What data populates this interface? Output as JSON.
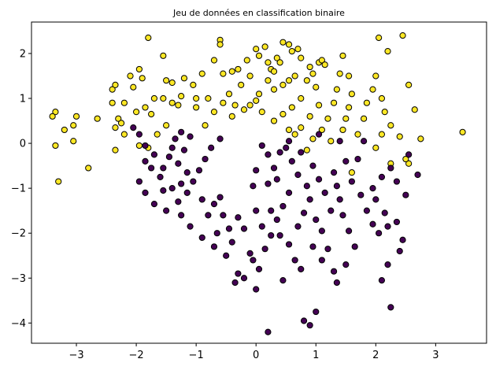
{
  "chart_data": {
    "type": "scatter",
    "title": "Jeu de données en classification binaire",
    "xlabel": "",
    "ylabel": "",
    "xlim": [
      -3.75,
      3.85
    ],
    "ylim": [
      -4.45,
      2.7
    ],
    "x_ticks": [
      -3,
      -2,
      -1,
      0,
      1,
      2,
      3
    ],
    "y_ticks": [
      -4,
      -3,
      -2,
      -1,
      0,
      1,
      2
    ],
    "x_tick_labels": [
      "−3",
      "−2",
      "−1",
      "0",
      "1",
      "2",
      "3"
    ],
    "y_tick_labels": [
      "−4",
      "−3",
      "−2",
      "−1",
      "0",
      "1",
      "2"
    ],
    "grid": false,
    "legend": "none",
    "colors": {
      "class_0": "#440154",
      "class_1": "#fde725",
      "edge": "#000000"
    },
    "series": [
      {
        "class": 1,
        "points": [
          [
            -3.35,
            0.7
          ],
          [
            -3.4,
            0.6
          ],
          [
            -3.2,
            0.3
          ],
          [
            -3.0,
            0.6
          ],
          [
            -3.05,
            0.4
          ],
          [
            -3.05,
            0.05
          ],
          [
            -3.35,
            -0.05
          ],
          [
            -3.3,
            -0.85
          ],
          [
            -2.8,
            -0.55
          ],
          [
            -2.65,
            0.55
          ],
          [
            -2.4,
            1.2
          ],
          [
            -2.35,
            1.3
          ],
          [
            -2.4,
            0.9
          ],
          [
            -2.3,
            0.55
          ],
          [
            -2.25,
            0.45
          ],
          [
            -2.35,
            0.35
          ],
          [
            -2.2,
            0.2
          ],
          [
            -2.35,
            -0.15
          ],
          [
            -2.2,
            0.9
          ],
          [
            -2.1,
            1.5
          ],
          [
            -2.05,
            1.25
          ],
          [
            -1.95,
            1.65
          ],
          [
            -1.9,
            1.45
          ],
          [
            -2.0,
            0.7
          ],
          [
            -1.85,
            0.8
          ],
          [
            -1.7,
            1.0
          ],
          [
            -1.75,
            0.65
          ],
          [
            -1.8,
            2.35
          ],
          [
            -1.55,
            1.95
          ],
          [
            -1.5,
            1.4
          ],
          [
            -1.4,
            1.35
          ],
          [
            -1.55,
            1.0
          ],
          [
            -1.4,
            0.9
          ],
          [
            -1.3,
            0.85
          ],
          [
            -1.25,
            1.05
          ],
          [
            -1.5,
            0.4
          ],
          [
            -1.65,
            0.2
          ],
          [
            -1.95,
            -0.05
          ],
          [
            -1.8,
            -0.1
          ],
          [
            -1.2,
            1.45
          ],
          [
            -1.05,
            1.3
          ],
          [
            -0.9,
            1.55
          ],
          [
            -1.0,
            1.0
          ],
          [
            -0.8,
            1.0
          ],
          [
            -1.0,
            0.8
          ],
          [
            -0.7,
            0.7
          ],
          [
            -0.85,
            0.4
          ],
          [
            -0.7,
            1.85
          ],
          [
            -0.6,
            2.3
          ],
          [
            -0.6,
            2.2
          ],
          [
            -0.55,
            1.55
          ],
          [
            -0.4,
            1.6
          ],
          [
            -0.3,
            1.65
          ],
          [
            -0.15,
            1.85
          ],
          [
            -0.25,
            1.3
          ],
          [
            -0.45,
            1.1
          ],
          [
            -0.55,
            0.9
          ],
          [
            -0.35,
            0.85
          ],
          [
            -0.2,
            0.75
          ],
          [
            -0.4,
            0.6
          ],
          [
            -0.1,
            1.5
          ],
          [
            0.0,
            2.1
          ],
          [
            0.05,
            1.95
          ],
          [
            0.15,
            2.15
          ],
          [
            0.2,
            1.8
          ],
          [
            0.25,
            1.65
          ],
          [
            0.3,
            1.6
          ],
          [
            0.35,
            1.9
          ],
          [
            0.4,
            1.8
          ],
          [
            0.45,
            2.25
          ],
          [
            0.55,
            2.2
          ],
          [
            0.6,
            2.05
          ],
          [
            0.7,
            2.1
          ],
          [
            0.75,
            1.9
          ],
          [
            0.65,
            1.5
          ],
          [
            0.55,
            1.4
          ],
          [
            0.45,
            1.3
          ],
          [
            0.3,
            1.2
          ],
          [
            0.2,
            1.4
          ],
          [
            0.05,
            1.1
          ],
          [
            0.0,
            0.95
          ],
          [
            -0.1,
            0.85
          ],
          [
            0.1,
            0.7
          ],
          [
            0.3,
            0.5
          ],
          [
            0.45,
            0.65
          ],
          [
            0.6,
            0.8
          ],
          [
            0.75,
            1.0
          ],
          [
            0.85,
            1.4
          ],
          [
            0.9,
            1.7
          ],
          [
            0.95,
            1.55
          ],
          [
            1.05,
            1.8
          ],
          [
            1.1,
            1.85
          ],
          [
            1.15,
            1.75
          ],
          [
            1.0,
            1.25
          ],
          [
            1.05,
            0.85
          ],
          [
            0.9,
            0.6
          ],
          [
            0.75,
            0.35
          ],
          [
            0.55,
            0.3
          ],
          [
            0.65,
            0.2
          ],
          [
            0.95,
            0.1
          ],
          [
            1.1,
            0.3
          ],
          [
            1.2,
            0.55
          ],
          [
            1.3,
            0.9
          ],
          [
            1.35,
            1.2
          ],
          [
            1.4,
            1.55
          ],
          [
            1.45,
            1.95
          ],
          [
            1.55,
            1.5
          ],
          [
            1.6,
            1.1
          ],
          [
            1.55,
            0.8
          ],
          [
            1.5,
            0.55
          ],
          [
            1.45,
            0.3
          ],
          [
            1.7,
            0.2
          ],
          [
            1.8,
            0.55
          ],
          [
            1.85,
            0.9
          ],
          [
            1.95,
            1.2
          ],
          [
            2.0,
            1.5
          ],
          [
            2.05,
            2.35
          ],
          [
            2.2,
            2.05
          ],
          [
            2.1,
            1.0
          ],
          [
            2.15,
            0.7
          ],
          [
            2.25,
            0.4
          ],
          [
            2.1,
            0.2
          ],
          [
            2.0,
            -0.1
          ],
          [
            2.25,
            -0.45
          ],
          [
            2.4,
            0.15
          ],
          [
            2.45,
            2.4
          ],
          [
            2.55,
            1.3
          ],
          [
            2.65,
            0.75
          ],
          [
            2.75,
            0.1
          ],
          [
            2.55,
            -0.45
          ],
          [
            2.5,
            -0.35
          ],
          [
            3.45,
            0.25
          ],
          [
            1.6,
            -0.65
          ],
          [
            1.25,
            0.05
          ],
          [
            0.85,
            -0.15
          ]
        ]
      },
      {
        "class": 0,
        "points": [
          [
            -2.05,
            0.35
          ],
          [
            -1.95,
            0.2
          ],
          [
            -1.85,
            -0.05
          ],
          [
            -1.7,
            -0.25
          ],
          [
            -1.85,
            -0.4
          ],
          [
            -1.75,
            -0.55
          ],
          [
            -1.6,
            -0.75
          ],
          [
            -1.55,
            -0.55
          ],
          [
            -1.45,
            -0.3
          ],
          [
            -1.4,
            -0.1
          ],
          [
            -1.35,
            0.1
          ],
          [
            -1.25,
            0.25
          ],
          [
            -1.1,
            0.15
          ],
          [
            -1.2,
            -0.15
          ],
          [
            -1.3,
            -0.45
          ],
          [
            -1.15,
            -0.65
          ],
          [
            -1.25,
            -0.9
          ],
          [
            -1.4,
            -1.0
          ],
          [
            -1.55,
            -1.05
          ],
          [
            -1.85,
            -1.1
          ],
          [
            -1.95,
            -0.85
          ],
          [
            -1.7,
            -1.35
          ],
          [
            -1.5,
            -1.5
          ],
          [
            -1.3,
            -1.3
          ],
          [
            -1.15,
            -1.1
          ],
          [
            -1.05,
            -0.85
          ],
          [
            -0.95,
            -0.6
          ],
          [
            -0.85,
            -0.35
          ],
          [
            -0.75,
            -0.1
          ],
          [
            -0.6,
            0.1
          ],
          [
            -0.9,
            -1.25
          ],
          [
            -0.8,
            -1.6
          ],
          [
            -0.7,
            -1.35
          ],
          [
            -0.6,
            -1.2
          ],
          [
            -0.55,
            -1.6
          ],
          [
            -0.45,
            -1.9
          ],
          [
            -0.4,
            -2.2
          ],
          [
            -0.3,
            -1.65
          ],
          [
            -0.2,
            -1.9
          ],
          [
            -0.1,
            -2.45
          ],
          [
            -0.05,
            -2.6
          ],
          [
            0.05,
            -2.8
          ],
          [
            -0.3,
            -2.9
          ],
          [
            -0.35,
            -3.1
          ],
          [
            0.0,
            -3.25
          ],
          [
            0.15,
            -2.35
          ],
          [
            0.25,
            -2.05
          ],
          [
            0.35,
            -1.7
          ],
          [
            0.45,
            -1.4
          ],
          [
            0.55,
            -1.1
          ],
          [
            0.35,
            -0.8
          ],
          [
            0.3,
            -0.55
          ],
          [
            0.2,
            -0.25
          ],
          [
            0.1,
            -0.05
          ],
          [
            0.0,
            -0.6
          ],
          [
            -0.05,
            -0.95
          ],
          [
            0.0,
            -1.5
          ],
          [
            0.1,
            -1.85
          ],
          [
            0.25,
            -1.5
          ],
          [
            0.4,
            -2.05
          ],
          [
            0.55,
            -2.25
          ],
          [
            0.65,
            -2.6
          ],
          [
            0.75,
            -2.8
          ],
          [
            0.7,
            -1.85
          ],
          [
            0.8,
            -1.55
          ],
          [
            0.9,
            -1.25
          ],
          [
            0.85,
            -0.95
          ],
          [
            0.7,
            -0.7
          ],
          [
            0.6,
            -0.4
          ],
          [
            0.75,
            -0.2
          ],
          [
            0.95,
            -0.5
          ],
          [
            1.05,
            -0.8
          ],
          [
            1.15,
            -1.1
          ],
          [
            1.0,
            -1.7
          ],
          [
            1.1,
            -1.95
          ],
          [
            1.2,
            -2.35
          ],
          [
            1.1,
            -2.6
          ],
          [
            1.3,
            -2.85
          ],
          [
            1.35,
            -3.1
          ],
          [
            1.5,
            -2.7
          ],
          [
            1.65,
            -2.3
          ],
          [
            1.55,
            -1.95
          ],
          [
            1.45,
            -1.6
          ],
          [
            1.4,
            -1.25
          ],
          [
            1.35,
            -0.95
          ],
          [
            1.3,
            -0.65
          ],
          [
            1.5,
            -0.4
          ],
          [
            1.7,
            -0.35
          ],
          [
            1.6,
            -0.85
          ],
          [
            1.75,
            -1.15
          ],
          [
            1.85,
            -1.5
          ],
          [
            1.95,
            -1.8
          ],
          [
            2.05,
            -2.0
          ],
          [
            2.2,
            -1.85
          ],
          [
            2.35,
            -1.75
          ],
          [
            2.15,
            -1.55
          ],
          [
            2.0,
            -1.25
          ],
          [
            1.95,
            -1.0
          ],
          [
            2.1,
            -0.75
          ],
          [
            2.25,
            -0.55
          ],
          [
            2.35,
            -0.85
          ],
          [
            2.5,
            -1.15
          ],
          [
            2.4,
            -2.4
          ],
          [
            2.45,
            -2.15
          ],
          [
            2.2,
            -2.7
          ],
          [
            2.1,
            -3.05
          ],
          [
            2.25,
            -3.65
          ],
          [
            2.55,
            -0.25
          ],
          [
            2.7,
            -0.7
          ],
          [
            1.8,
            0.05
          ],
          [
            1.4,
            0.05
          ],
          [
            1.05,
            0.2
          ],
          [
            0.55,
            0.05
          ],
          [
            0.5,
            -0.1
          ],
          [
            0.4,
            -0.2
          ],
          [
            0.8,
            -3.95
          ],
          [
            0.9,
            -4.05
          ],
          [
            0.2,
            -4.2
          ],
          [
            1.0,
            -3.75
          ],
          [
            -0.5,
            -2.5
          ],
          [
            -0.7,
            -2.3
          ],
          [
            -0.9,
            -2.1
          ],
          [
            -1.1,
            -1.85
          ],
          [
            -1.25,
            -1.6
          ],
          [
            -0.65,
            -2.0
          ],
          [
            0.45,
            -3.05
          ],
          [
            -0.2,
            -3.0
          ],
          [
            0.95,
            -2.3
          ],
          [
            1.25,
            -1.5
          ],
          [
            0.2,
            -0.9
          ]
        ]
      }
    ]
  }
}
